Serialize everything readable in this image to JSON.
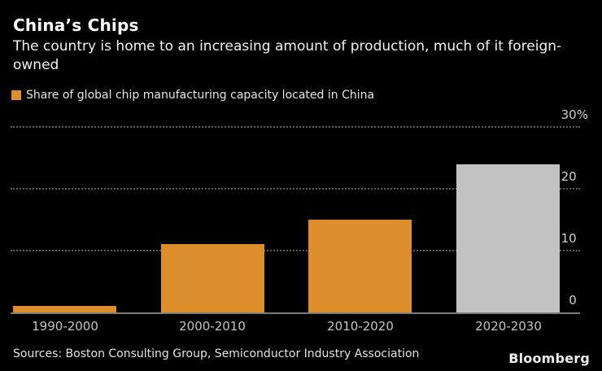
{
  "header": {
    "title": "China’s Chips",
    "subtitle": "The country is home to an increasing amount of production, much of it foreign-owned"
  },
  "legend": {
    "label": "Share of global chip manufacturing capacity located in China",
    "swatch_color": "#DE8D2B"
  },
  "chart_data": {
    "type": "bar",
    "categories": [
      "1990-2000",
      "2000-2010",
      "2010-2020",
      "2020-2030"
    ],
    "values": [
      1,
      11,
      15,
      24
    ],
    "series_name": "Share of global chip manufacturing capacity located in China",
    "unit": "%",
    "title": "China’s Chips",
    "xlabel": "",
    "ylabel": "",
    "ylim": [
      0,
      30
    ],
    "yticks": [
      0,
      10,
      20,
      30
    ],
    "ytick_labels": [
      "0",
      "10",
      "20",
      "30%"
    ],
    "legend_position": "top-left",
    "grid": "horizontal-dotted",
    "bar_colors": [
      "#DE8D2B",
      "#DE8D2B",
      "#DE8D2B",
      "#C2C2C2"
    ],
    "projected_bar_index": 3,
    "background_color": "#000000"
  },
  "footer": {
    "sources": "Sources: Boston Consulting Group, Semiconductor Industry Association",
    "brand": "Bloomberg"
  }
}
